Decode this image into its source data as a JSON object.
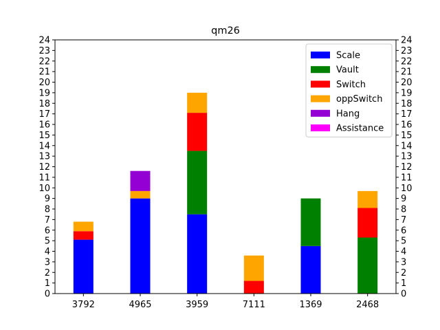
{
  "chart_data": {
    "type": "bar",
    "stacked": true,
    "title": "qm26",
    "xlabel": "",
    "ylabel": "",
    "categories": [
      "3792",
      "4965",
      "3959",
      "7111",
      "1369",
      "2468"
    ],
    "series": [
      {
        "name": "Scale",
        "color": "#0000ff",
        "values": [
          5.1,
          9.0,
          7.5,
          0,
          4.5,
          0
        ]
      },
      {
        "name": "Vault",
        "color": "#008000",
        "values": [
          0,
          0,
          6.0,
          0,
          4.5,
          5.3
        ]
      },
      {
        "name": "Switch",
        "color": "#ff0000",
        "values": [
          0.8,
          0,
          3.6,
          1.2,
          0,
          2.8
        ]
      },
      {
        "name": "oppSwitch",
        "color": "#ffa500",
        "values": [
          0.9,
          0.7,
          1.9,
          2.4,
          0,
          1.6
        ]
      },
      {
        "name": "Hang",
        "color": "#9400d3",
        "values": [
          0,
          1.9,
          0,
          0,
          0,
          0
        ]
      },
      {
        "name": "Assistance",
        "color": "#ff00ff",
        "values": [
          0,
          0,
          0,
          0,
          0,
          0
        ]
      }
    ],
    "ylim": [
      0,
      24
    ],
    "yticks": [
      0,
      1,
      2,
      3,
      4,
      5,
      6,
      7,
      8,
      9,
      10,
      11,
      12,
      13,
      14,
      15,
      16,
      17,
      18,
      19,
      20,
      21,
      22,
      23,
      24
    ],
    "secondary_y_axis": true,
    "grid": false,
    "legend_position": "top-right"
  }
}
